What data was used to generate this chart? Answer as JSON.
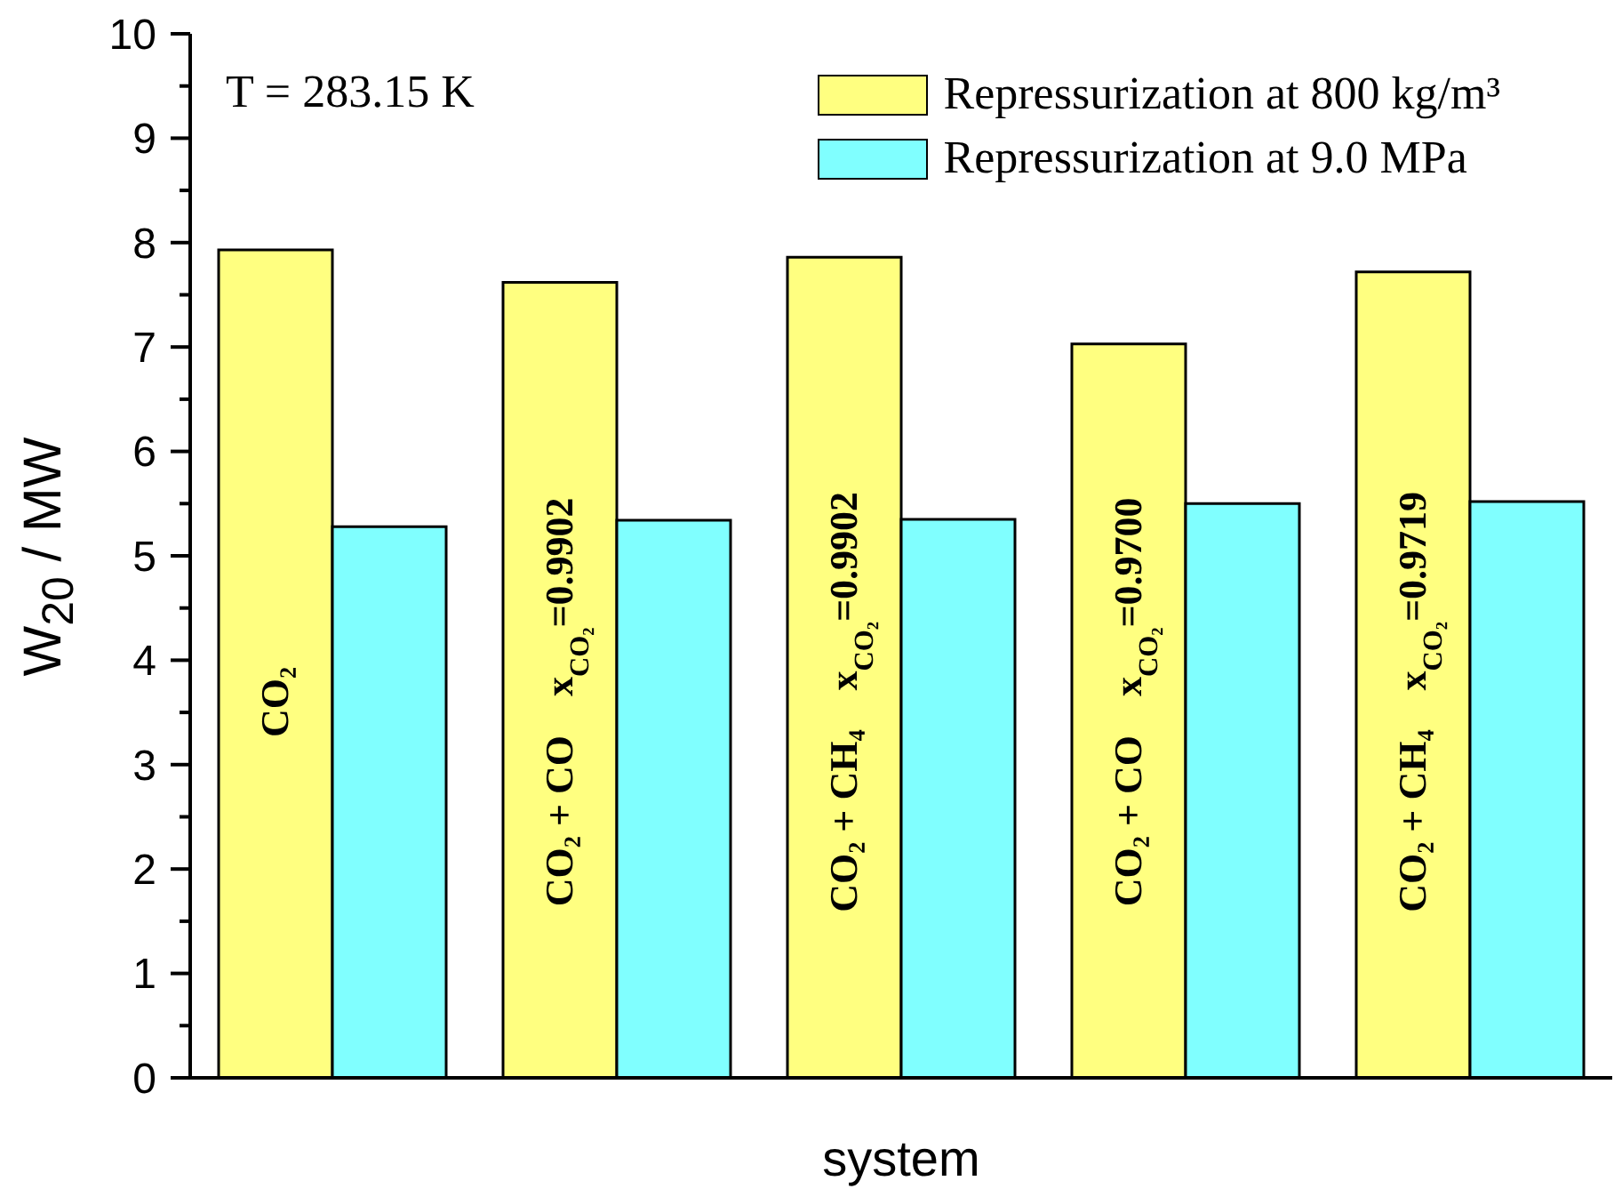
{
  "chart_data": {
    "type": "bar",
    "categories": [
      "CO₂",
      "CO₂ + CO    x$_{CO₂}$=0.9902",
      "CO₂ + CH₄    x$_{CO₂}$=0.9902",
      "CO₂ + CO    x$_{CO₂}$=0.9700",
      "CO₂ + CH₄    x$_{CO₂}$=0.9719"
    ],
    "series": [
      {
        "name": "Repressurization at 800 kg/m³",
        "color": "#ffff80",
        "values": [
          7.93,
          7.62,
          7.86,
          7.03,
          7.72
        ]
      },
      {
        "name": "Repressurization at 9.0 MPa",
        "color": "#80ffff",
        "values": [
          5.28,
          5.34,
          5.35,
          5.5,
          5.52
        ]
      }
    ],
    "xlabel": "system",
    "ylabel": "W$_{20}$ / MW",
    "ylim": [
      0,
      10
    ],
    "yticks": [
      0,
      {
        "value": 0.5,
        "label": null
      },
      1,
      {
        "value": 1.5,
        "label": null
      },
      2,
      {
        "value": 2.5,
        "label": null
      },
      3,
      {
        "value": 3.5,
        "label": null
      },
      4,
      {
        "value": 4.5,
        "label": null
      },
      5,
      {
        "value": 5.5,
        "label": null
      },
      6,
      {
        "value": 6.5,
        "label": null
      },
      7,
      {
        "value": 7.5,
        "label": null
      },
      8,
      {
        "value": 8.5,
        "label": null
      },
      9,
      {
        "value": 9.5,
        "label": null
      },
      10
    ],
    "legend": "top right",
    "annotations": [
      "T = 283.15 K"
    ]
  }
}
